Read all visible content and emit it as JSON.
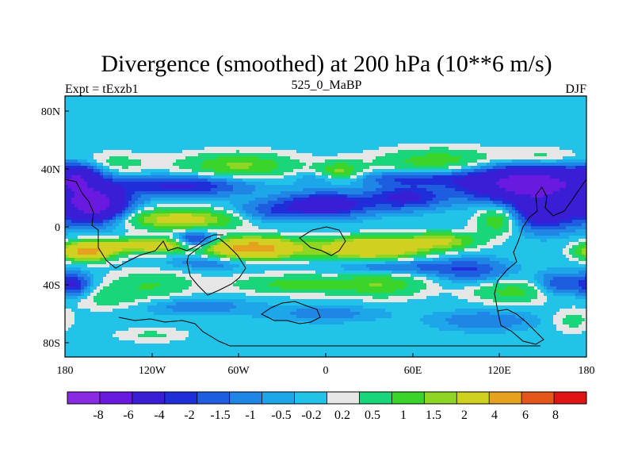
{
  "chart_data": {
    "type": "heatmap",
    "title": "Divergence (smoothed) at 200 hPa (10**6 m/s)",
    "subtitle_left": "Expt = tExzb1",
    "subtitle_center": "525_0_MaBP",
    "subtitle_right": "DJF",
    "x_range": [
      -180,
      180
    ],
    "y_range": [
      -90,
      90
    ],
    "x_ticks": [
      {
        "value": -180,
        "label": "180"
      },
      {
        "value": -120,
        "label": "120W"
      },
      {
        "value": -60,
        "label": "60W"
      },
      {
        "value": 0,
        "label": "0"
      },
      {
        "value": 60,
        "label": "60E"
      },
      {
        "value": 120,
        "label": "120E"
      },
      {
        "value": 180,
        "label": "180"
      }
    ],
    "y_ticks": [
      {
        "value": 80,
        "label": "80N"
      },
      {
        "value": 40,
        "label": "40N"
      },
      {
        "value": 0,
        "label": "0"
      },
      {
        "value": -40,
        "label": "40S"
      },
      {
        "value": -80,
        "label": "80S"
      }
    ],
    "levels": [
      -8,
      -6,
      -4,
      -2,
      -1.5,
      -1,
      -0.5,
      -0.2,
      0.2,
      0.5,
      1,
      1.5,
      2,
      4,
      6,
      8
    ],
    "level_labels": [
      "-8",
      "-6",
      "-4",
      "-2",
      "-1.5",
      "-1",
      "-0.5",
      "-0.2",
      "0.2",
      "0.5",
      "1",
      "1.5",
      "2",
      "4",
      "6",
      "8"
    ],
    "colors": [
      "#8a2be2",
      "#6a1ae0",
      "#3a1ed6",
      "#1f2ed8",
      "#1f5de0",
      "#1f86e6",
      "#1ea6ea",
      "#22c3e8",
      "#e6e6e6",
      "#1ad67a",
      "#3ad42a",
      "#8fd624",
      "#d0d020",
      "#e6a21e",
      "#e4561a",
      "#e01414"
    ],
    "blobs": [
      {
        "lon": -160,
        "lat": 15,
        "rlon": 22,
        "rlat": 12,
        "v": -5
      },
      {
        "lon": -170,
        "lat": 35,
        "rlon": 15,
        "rlat": 9,
        "v": -2.5
      },
      {
        "lon": -100,
        "lat": 5,
        "rlon": 40,
        "rlat": 7,
        "v": 2.5
      },
      {
        "lon": -165,
        "lat": -17,
        "rlon": 18,
        "rlat": 6,
        "v": 4.5
      },
      {
        "lon": -120,
        "lat": -13,
        "rlon": 30,
        "rlat": 5,
        "v": 3
      },
      {
        "lon": -90,
        "lat": -10,
        "rlon": 14,
        "rlat": 6,
        "v": -2.5
      },
      {
        "lon": -50,
        "lat": -15,
        "rlon": 30,
        "rlat": 7,
        "v": 5
      },
      {
        "lon": 30,
        "lat": -15,
        "rlon": 35,
        "rlat": 7,
        "v": 4
      },
      {
        "lon": 80,
        "lat": -10,
        "rlon": 25,
        "rlat": 6,
        "v": 2
      },
      {
        "lon": -40,
        "lat": 10,
        "rlon": 25,
        "rlat": 7,
        "v": -1.2
      },
      {
        "lon": 0,
        "lat": 15,
        "rlon": 30,
        "rlat": 8,
        "v": -3
      },
      {
        "lon": 55,
        "lat": 20,
        "rlon": 25,
        "rlat": 8,
        "v": -2.2
      },
      {
        "lon": 140,
        "lat": 30,
        "rlon": 45,
        "rlat": 12,
        "v": -5
      },
      {
        "lon": 150,
        "lat": 10,
        "rlon": 25,
        "rlat": 12,
        "v": -3
      },
      {
        "lon": 120,
        "lat": 5,
        "rlon": 15,
        "rlat": 10,
        "v": 1.8
      },
      {
        "lon": -150,
        "lat": 43,
        "rlon": 30,
        "rlat": 8,
        "v": 0.8
      },
      {
        "lon": -60,
        "lat": 42,
        "rlon": 40,
        "rlat": 9,
        "v": 1.6
      },
      {
        "lon": 10,
        "lat": 37,
        "rlon": 15,
        "rlat": 7,
        "v": 1.8
      },
      {
        "lon": 80,
        "lat": 45,
        "rlon": 45,
        "rlat": 9,
        "v": 1.4
      },
      {
        "lon": 150,
        "lat": 48,
        "rlon": 25,
        "rlat": 6,
        "v": 0.8
      },
      {
        "lon": -120,
        "lat": -40,
        "rlon": 30,
        "rlat": 10,
        "v": 1
      },
      {
        "lon": -150,
        "lat": -50,
        "rlon": 25,
        "rlat": 8,
        "v": 0.7
      },
      {
        "lon": -20,
        "lat": -40,
        "rlon": 45,
        "rlat": 7,
        "v": 1.2
      },
      {
        "lon": 40,
        "lat": -40,
        "rlon": 30,
        "rlat": 9,
        "v": 1.3
      },
      {
        "lon": 130,
        "lat": -45,
        "rlon": 30,
        "rlat": 8,
        "v": 1.2
      },
      {
        "lon": 160,
        "lat": -40,
        "rlon": 15,
        "rlat": 8,
        "v": -1.5
      },
      {
        "lon": 100,
        "lat": -30,
        "rlon": 25,
        "rlat": 8,
        "v": -1.4
      },
      {
        "lon": -175,
        "lat": -40,
        "rlon": 12,
        "rlat": 8,
        "v": -2.2
      },
      {
        "lon": -90,
        "lat": -55,
        "rlon": 40,
        "rlat": 6,
        "v": -0.8
      },
      {
        "lon": 0,
        "lat": -60,
        "rlon": 40,
        "rlat": 6,
        "v": -0.7
      },
      {
        "lon": 110,
        "lat": -65,
        "rlon": 35,
        "rlat": 7,
        "v": -0.9
      },
      {
        "lon": -120,
        "lat": -75,
        "rlon": 25,
        "rlat": 5,
        "v": 0.6
      },
      {
        "lon": 170,
        "lat": -65,
        "rlon": 15,
        "rlat": 8,
        "v": 0.7
      },
      {
        "lon": -100,
        "lat": 28,
        "rlon": 45,
        "rlat": 7,
        "v": -2.2
      },
      {
        "lon": 0,
        "lat": 33,
        "rlon": 20,
        "rlat": 5,
        "v": -0.8
      },
      {
        "lon": 60,
        "lat": 33,
        "rlon": 40,
        "rlat": 5,
        "v": -1.5
      },
      {
        "lon": -80,
        "lat": -25,
        "rlon": 30,
        "rlat": 5,
        "v": -0.9
      },
      {
        "lon": 50,
        "lat": -28,
        "rlon": 40,
        "rlat": 5,
        "v": -1.2
      }
    ]
  }
}
